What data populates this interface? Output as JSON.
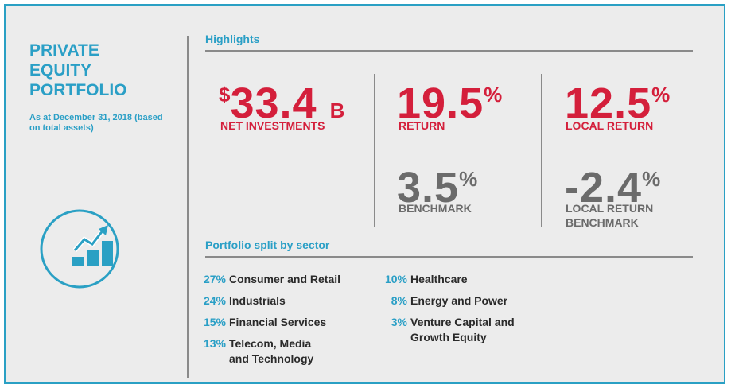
{
  "title": "PRIVATE EQUITY PORTFOLIO",
  "subtitle": "As at December 31, 2018 (based on total assets)",
  "highlights": {
    "heading": "Highlights",
    "metrics": [
      {
        "prefix": "$",
        "value": "33.4",
        "suffix": "B",
        "label": "NET INVESTMENTS"
      },
      {
        "value": "19.5",
        "suffix": "%",
        "label": "RETURN"
      },
      {
        "value": "12.5",
        "suffix": "%",
        "label": "LOCAL RETURN"
      },
      {
        "value": "3.5",
        "suffix": "%",
        "label": "BENCHMARK"
      },
      {
        "value": "-2.4",
        "suffix": "%",
        "label": "LOCAL RETURN BENCHMARK"
      }
    ]
  },
  "sectors": {
    "heading": "Portfolio split by sector",
    "items": [
      {
        "percent": "27%",
        "name": "Consumer and Retail"
      },
      {
        "percent": "24%",
        "name": "Industrials"
      },
      {
        "percent": "15%",
        "name": "Financial Services"
      },
      {
        "percent": "13%",
        "name": "Telecom, Media and Technology"
      },
      {
        "percent": "10%",
        "name": "Healthcare"
      },
      {
        "percent": "8%",
        "name": "Energy and Power"
      },
      {
        "percent": "3%",
        "name": "Venture Capital and Growth Equity"
      }
    ]
  }
}
